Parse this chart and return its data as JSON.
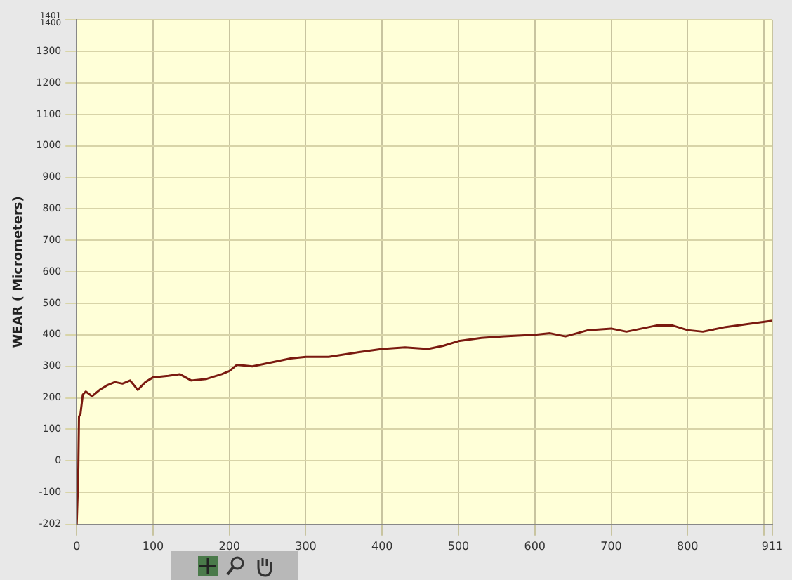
{
  "chart_data": {
    "type": "line",
    "ylabel": "WEAR ( Micrometers)",
    "grid": true,
    "xlim": [
      0,
      911
    ],
    "xticks": [
      0,
      100,
      200,
      300,
      400,
      500,
      600,
      700,
      800,
      {
        "value": 900,
        "label": null
      },
      911
    ],
    "ylim": [
      -202,
      1401
    ],
    "yticks": [
      -202,
      -100,
      0,
      100,
      200,
      300,
      400,
      500,
      600,
      700,
      800,
      900,
      1000,
      1100,
      1200,
      1300,
      1400,
      1401
    ],
    "series": [
      {
        "color": "#7a1a10",
        "x": [
          0,
          2,
          3,
          5,
          8,
          12,
          20,
          30,
          40,
          50,
          60,
          70,
          80,
          90,
          100,
          120,
          135,
          150,
          170,
          190,
          200,
          210,
          230,
          260,
          280,
          300,
          330,
          370,
          400,
          430,
          460,
          480,
          500,
          530,
          560,
          600,
          620,
          640,
          670,
          700,
          720,
          760,
          780,
          800,
          820,
          850,
          880,
          911
        ],
        "values": [
          -202,
          -50,
          140,
          150,
          210,
          220,
          205,
          225,
          240,
          250,
          245,
          255,
          225,
          250,
          265,
          270,
          275,
          255,
          260,
          275,
          285,
          305,
          300,
          315,
          325,
          330,
          330,
          345,
          355,
          360,
          355,
          365,
          380,
          390,
          395,
          400,
          405,
          395,
          415,
          420,
          410,
          430,
          430,
          415,
          410,
          425,
          435,
          445
        ]
      }
    ]
  }
}
